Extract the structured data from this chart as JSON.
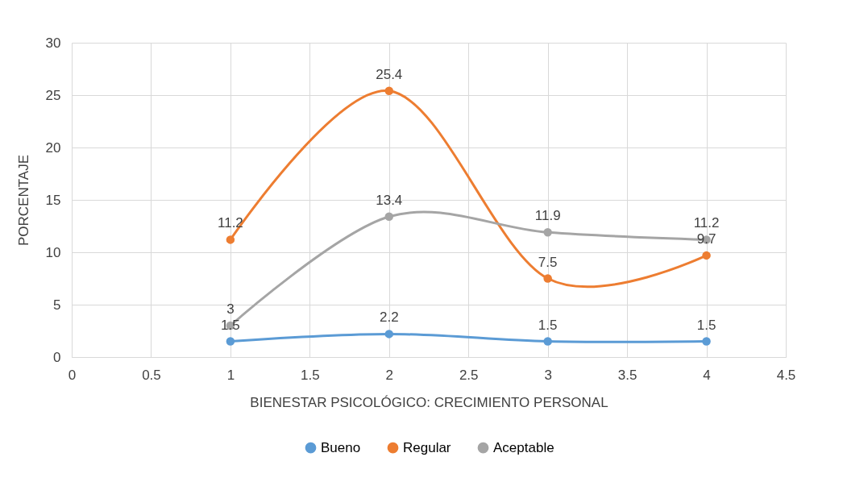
{
  "chart_data": {
    "type": "line",
    "xlabel": "BIENESTAR PSICOLÓGICO: CRECIMIENTO PERSONAL",
    "ylabel": "PORCENTAJE",
    "x": [
      1,
      2,
      3,
      4
    ],
    "series": [
      {
        "name": "Bueno",
        "color": "#5b9bd5",
        "values": [
          1.5,
          2.2,
          1.5,
          1.5
        ]
      },
      {
        "name": "Regular",
        "color": "#ed7d31",
        "values": [
          11.2,
          25.4,
          7.5,
          9.7
        ]
      },
      {
        "name": "Aceptable",
        "color": "#a5a5a5",
        "values": [
          3,
          13.4,
          11.9,
          11.2
        ]
      }
    ],
    "xlim": [
      0,
      4.5
    ],
    "xticks": [
      0,
      0.5,
      1,
      1.5,
      2,
      2.5,
      3,
      3.5,
      4,
      4.5
    ],
    "ylim": [
      0,
      30
    ],
    "yticks": [
      0,
      5,
      10,
      15,
      20,
      25,
      30
    ],
    "grid": true,
    "legend": "bottom",
    "marker": "circle",
    "line_style": "solid",
    "data_labels": true
  }
}
